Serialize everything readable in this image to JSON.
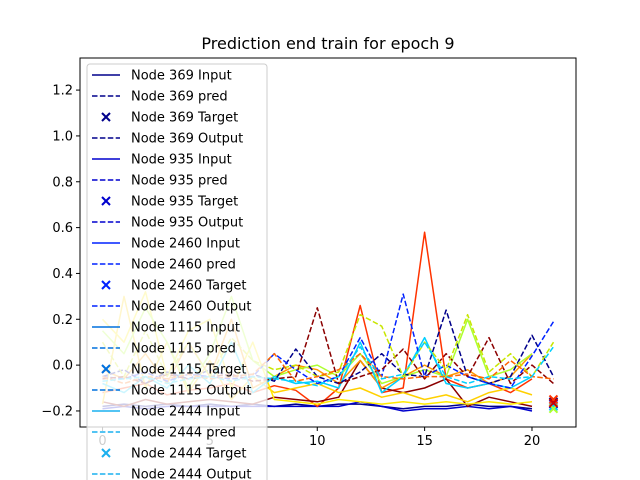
{
  "chart_data": {
    "type": "line",
    "title": "Prediction end train for epoch 9",
    "xlabel": "",
    "ylabel": "",
    "xlim": [
      -1.05,
      22.05
    ],
    "ylim": [
      -0.27,
      1.34
    ],
    "xticks": [
      0,
      5,
      10,
      15,
      20
    ],
    "yticks": [
      -0.2,
      0.0,
      0.2,
      0.4,
      0.6,
      0.8,
      1.0,
      1.2
    ],
    "ytick_labels": [
      "−0.2",
      "0.0",
      "0.2",
      "0.4",
      "0.6",
      "0.8",
      "1.0",
      "1.2"
    ],
    "legend_position": "upper-left",
    "legend": [
      {
        "label": "Node 369 Input",
        "style": "solid",
        "color": "#00008b"
      },
      {
        "label": "Node 369 pred",
        "style": "dashed",
        "color": "#00008b"
      },
      {
        "label": "Node 369 Target",
        "style": "x",
        "color": "#00008b"
      },
      {
        "label": "Node 369 Output",
        "style": "dashed",
        "color": "#00008b"
      },
      {
        "label": "Node 935 Input",
        "style": "solid",
        "color": "#0000cd"
      },
      {
        "label": "Node 935 pred",
        "style": "dashed",
        "color": "#0000cd"
      },
      {
        "label": "Node 935 Target",
        "style": "x",
        "color": "#0000cd"
      },
      {
        "label": "Node 935 Output",
        "style": "dashed",
        "color": "#0000cd"
      },
      {
        "label": "Node 2460 Input",
        "style": "solid",
        "color": "#0022ff"
      },
      {
        "label": "Node 2460 pred",
        "style": "dashed",
        "color": "#0022ff"
      },
      {
        "label": "Node 2460 Target",
        "style": "x",
        "color": "#0022ff"
      },
      {
        "label": "Node 2460 Output",
        "style": "dashed",
        "color": "#0022ff"
      },
      {
        "label": "Node 1115 Input",
        "style": "solid",
        "color": "#0070dd"
      },
      {
        "label": "Node 1115 pred",
        "style": "dashed",
        "color": "#0070dd"
      },
      {
        "label": "Node 1115 Target",
        "style": "x",
        "color": "#0070dd"
      },
      {
        "label": "Node 1115 Output",
        "style": "dashed",
        "color": "#0070dd"
      },
      {
        "label": "Node 2444 Input",
        "style": "solid",
        "color": "#1ab0ef"
      },
      {
        "label": "Node 2444 pred",
        "style": "dashed",
        "color": "#1ab0ef"
      },
      {
        "label": "Node 2444 Target",
        "style": "x",
        "color": "#1ab0ef"
      },
      {
        "label": "Node 2444 Output",
        "style": "dashed",
        "color": "#1ab0ef"
      }
    ],
    "series": [
      {
        "color": "#00008b",
        "style": "solid",
        "x": [
          0,
          1,
          2,
          3,
          4,
          5,
          6,
          7,
          8,
          9,
          10,
          11,
          12,
          13,
          14,
          15,
          16,
          17,
          18,
          19,
          20
        ],
        "values": [
          -0.18,
          -0.17,
          -0.18,
          -0.17,
          -0.18,
          -0.17,
          -0.18,
          -0.17,
          -0.18,
          -0.17,
          -0.18,
          -0.17,
          -0.17,
          -0.18,
          -0.19,
          -0.18,
          -0.18,
          -0.17,
          -0.18,
          -0.18,
          -0.19
        ]
      },
      {
        "color": "#0000cd",
        "style": "solid",
        "x": [
          0,
          1,
          2,
          3,
          4,
          5,
          6,
          7,
          8,
          9,
          10,
          11,
          12,
          13,
          14,
          15,
          16,
          17,
          18,
          19,
          20
        ],
        "values": [
          -0.19,
          -0.18,
          -0.19,
          -0.18,
          -0.18,
          -0.18,
          -0.18,
          -0.18,
          -0.18,
          -0.18,
          -0.18,
          -0.18,
          -0.16,
          -0.18,
          -0.2,
          -0.19,
          -0.19,
          -0.18,
          -0.19,
          -0.18,
          -0.2
        ]
      },
      {
        "color": "#ff3300",
        "style": "solid",
        "x": [
          0,
          1,
          2,
          3,
          4,
          5,
          6,
          7,
          8,
          9,
          10,
          11,
          12,
          13,
          14,
          15,
          16,
          17,
          18,
          19,
          20
        ],
        "values": [
          -0.12,
          -0.1,
          -0.08,
          -0.13,
          -0.11,
          -0.1,
          -0.08,
          -0.12,
          -0.09,
          -0.11,
          -0.18,
          -0.1,
          0.26,
          -0.12,
          -0.1,
          0.58,
          -0.06,
          -0.1,
          -0.08,
          -0.12,
          -0.06
        ]
      },
      {
        "color": "#8b0000",
        "style": "solid",
        "x": [
          0,
          1,
          2,
          3,
          4,
          5,
          6,
          7,
          8,
          9,
          10,
          11,
          12,
          13,
          14,
          15,
          16,
          17,
          18,
          19,
          20
        ],
        "values": [
          -0.16,
          -0.18,
          -0.15,
          -0.17,
          -0.16,
          -0.15,
          -0.16,
          -0.17,
          -0.14,
          -0.15,
          -0.16,
          -0.14,
          0.02,
          -0.1,
          -0.12,
          -0.1,
          -0.06,
          -0.18,
          -0.14,
          -0.16,
          -0.18
        ]
      },
      {
        "color": "#ffd000",
        "style": "solid",
        "x": [
          0,
          1,
          2,
          3,
          4,
          5,
          6,
          7,
          8,
          9,
          10,
          11,
          12,
          13,
          14,
          15,
          16,
          17,
          18,
          19,
          20
        ],
        "values": [
          -0.17,
          0.3,
          -0.1,
          0.1,
          -0.12,
          0.02,
          -0.15,
          -0.05,
          -0.12,
          -0.1,
          -0.08,
          -0.12,
          -0.1,
          -0.14,
          -0.12,
          -0.15,
          -0.13,
          -0.16,
          -0.12,
          -0.1,
          -0.13
        ]
      },
      {
        "color": "#ffea00",
        "style": "solid",
        "x": [
          0,
          1,
          2,
          3,
          4,
          5,
          6,
          7,
          8,
          9,
          10,
          11,
          12,
          13,
          14,
          15,
          16,
          17,
          18,
          19,
          20
        ],
        "values": [
          0.2,
          0.1,
          0.32,
          -0.05,
          0.15,
          0.2,
          -0.1,
          0.1,
          -0.15,
          -0.16,
          -0.17,
          -0.15,
          -0.16,
          -0.17,
          -0.16,
          -0.17,
          -0.16,
          -0.17,
          -0.16,
          -0.17,
          -0.16
        ]
      },
      {
        "color": "#ff9900",
        "style": "solid",
        "x": [
          0,
          1,
          2,
          3,
          4,
          5,
          6,
          7,
          8,
          9,
          10,
          11,
          12,
          13,
          14,
          15,
          16,
          17,
          18,
          19,
          20
        ],
        "values": [
          -0.02,
          -0.06,
          0.05,
          -0.08,
          0.1,
          -0.05,
          0.2,
          -0.1,
          -0.05,
          0.0,
          -0.02,
          -0.08,
          0.02,
          -0.1,
          -0.05,
          0.0,
          -0.05,
          -0.02,
          -0.08,
          -0.05,
          0.05
        ]
      },
      {
        "color": "#adff2f",
        "style": "solid",
        "x": [
          0,
          1,
          2,
          3,
          4,
          5,
          6,
          7,
          8,
          9,
          10,
          11,
          12,
          13,
          14,
          15,
          16,
          17,
          18,
          19,
          20
        ],
        "values": [
          0.15,
          0.05,
          0.25,
          0.1,
          -0.1,
          0.05,
          0.3,
          0.02,
          -0.05,
          -0.02,
          0.0,
          -0.05,
          0.05,
          -0.08,
          -0.05,
          -0.02,
          -0.05,
          0.2,
          -0.05,
          -0.02,
          0.05
        ]
      },
      {
        "color": "#00cfff",
        "style": "solid",
        "x": [
          0,
          1,
          2,
          3,
          4,
          5,
          6,
          7,
          8,
          9,
          10,
          11,
          12,
          13,
          14,
          15,
          16,
          17,
          18,
          19,
          20
        ],
        "values": [
          -0.08,
          -0.12,
          -0.05,
          -0.1,
          0.0,
          -0.08,
          0.1,
          -0.12,
          -0.05,
          -0.08,
          -0.07,
          -0.1,
          0.1,
          -0.12,
          -0.05,
          0.12,
          -0.08,
          -0.1,
          -0.08,
          -0.1,
          -0.05
        ]
      },
      {
        "color": "#00008b",
        "style": "dashed",
        "x": [
          0,
          1,
          2,
          3,
          4,
          5,
          6,
          7,
          8,
          9,
          10,
          11,
          12,
          13,
          14,
          15,
          16,
          17,
          18,
          19,
          20,
          21
        ],
        "values": [
          -0.05,
          -0.02,
          -0.08,
          -0.03,
          -0.06,
          -0.02,
          -0.05,
          -0.04,
          -0.07,
          0.07,
          -0.05,
          -0.08,
          -0.03,
          0.05,
          -0.04,
          -0.05,
          0.24,
          -0.05,
          -0.08,
          -0.05,
          0.13,
          -0.05
        ]
      },
      {
        "color": "#0022ff",
        "style": "dashed",
        "x": [
          0,
          1,
          2,
          3,
          4,
          5,
          6,
          7,
          8,
          9,
          10,
          11,
          12,
          13,
          14,
          15,
          16,
          17,
          18,
          19,
          20,
          21
        ],
        "values": [
          -0.05,
          -0.06,
          -0.03,
          -0.07,
          -0.04,
          -0.05,
          -0.06,
          -0.05,
          0.05,
          -0.02,
          -0.08,
          -0.05,
          0.12,
          -0.05,
          0.31,
          -0.05,
          0.0,
          -0.05,
          -0.08,
          -0.1,
          0.04,
          0.19
        ]
      },
      {
        "color": "#8b0000",
        "style": "dashed",
        "x": [
          0,
          1,
          2,
          3,
          4,
          5,
          6,
          7,
          8,
          9,
          10,
          11,
          12,
          13,
          14,
          15,
          16,
          17,
          18,
          19,
          20,
          21
        ],
        "values": [
          -0.06,
          -0.05,
          -0.08,
          -0.04,
          -0.06,
          -0.05,
          -0.04,
          -0.07,
          -0.06,
          -0.05,
          0.25,
          -0.08,
          -0.05,
          -0.02,
          0.07,
          -0.06,
          0.05,
          -0.05,
          0.12,
          -0.08,
          0.0,
          -0.08
        ]
      },
      {
        "color": "#c8e600",
        "style": "dashed",
        "x": [
          0,
          1,
          2,
          3,
          4,
          5,
          6,
          7,
          8,
          9,
          10,
          11,
          12,
          13,
          14,
          15,
          16,
          17,
          18,
          19,
          20,
          21
        ],
        "values": [
          0.1,
          -0.05,
          0.15,
          -0.05,
          0.1,
          -0.05,
          0.12,
          0.02,
          -0.02,
          0.0,
          -0.05,
          -0.03,
          0.22,
          0.17,
          -0.05,
          0.1,
          -0.02,
          0.22,
          -0.03,
          0.05,
          -0.05,
          0.1
        ]
      },
      {
        "color": "#ff6600",
        "style": "dashed",
        "x": [
          0,
          1,
          2,
          3,
          4,
          5,
          6,
          7,
          8,
          9,
          10,
          11,
          12,
          13,
          14,
          15,
          16,
          17,
          18,
          19,
          20,
          21
        ],
        "values": [
          -0.05,
          -0.08,
          -0.05,
          -0.06,
          -0.04,
          -0.06,
          -0.05,
          -0.04,
          0.05,
          -0.07,
          -0.05,
          -0.02,
          0.05,
          -0.05,
          -0.06,
          -0.05,
          -0.05,
          -0.04,
          -0.06,
          0.02,
          -0.05,
          -0.06
        ]
      },
      {
        "color": "#00cfff",
        "style": "dashed",
        "x": [
          0,
          1,
          2,
          3,
          4,
          5,
          6,
          7,
          8,
          9,
          10,
          11,
          12,
          13,
          14,
          15,
          16,
          17,
          18,
          19,
          20,
          21
        ],
        "values": [
          -0.07,
          -0.06,
          -0.05,
          -0.08,
          -0.06,
          -0.05,
          -0.07,
          -0.05,
          -0.06,
          -0.07,
          -0.09,
          -0.05,
          0.08,
          -0.06,
          -0.04,
          0.1,
          -0.05,
          -0.08,
          -0.05,
          -0.06,
          -0.05,
          0.08
        ]
      }
    ],
    "targets": [
      {
        "x": 21,
        "y": -0.16,
        "color": "#00008b"
      },
      {
        "x": 21,
        "y": -0.17,
        "color": "#0000cd"
      },
      {
        "x": 21,
        "y": -0.18,
        "color": "#00cfff"
      },
      {
        "x": 21,
        "y": -0.19,
        "color": "#adff2f"
      },
      {
        "x": 21,
        "y": -0.15,
        "color": "#ff3300"
      },
      {
        "x": 21,
        "y": -0.165,
        "color": "#cc0000"
      }
    ]
  }
}
